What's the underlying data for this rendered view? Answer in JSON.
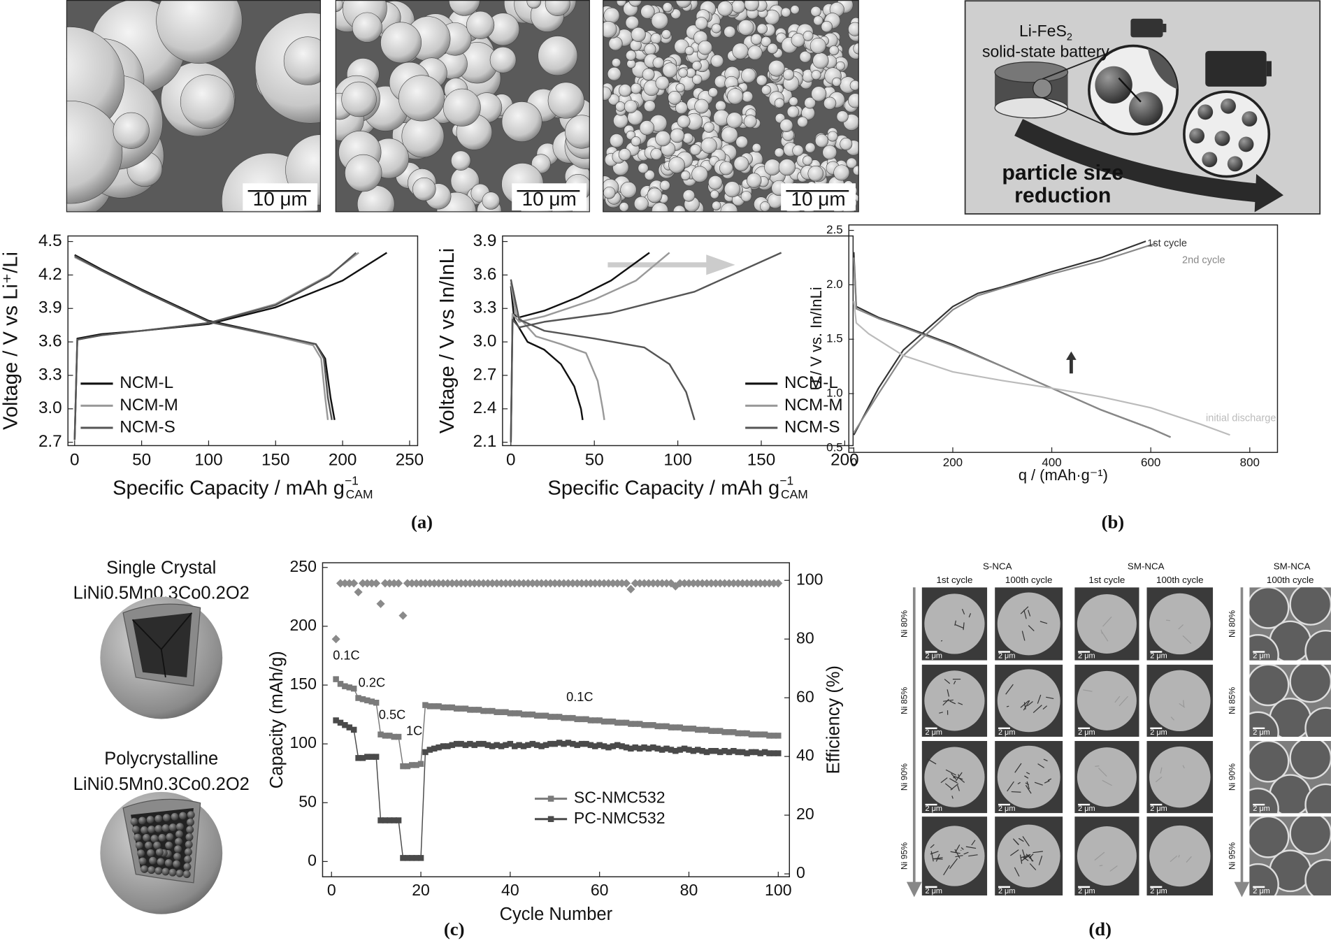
{
  "chart_data": [
    {
      "type": "line",
      "x_label": "Specific Capacity / mAh g",
      "x_label_sup": "−1",
      "x_label_sub": "CAM",
      "y_label": "Voltage / V vs Li⁺/Li",
      "xlim": [
        -5,
        256
      ],
      "ylim": [
        2.67,
        4.55
      ],
      "xticks": [
        0,
        50,
        100,
        150,
        200,
        250
      ],
      "yticks": [
        2.7,
        {
          "value": 3,
          "label": "3.0"
        },
        3.3,
        3.6,
        3.9,
        4.2,
        4.5
      ],
      "grid": false,
      "legend": "lower left",
      "series": [
        {
          "name": "NCM-L",
          "color": "#111111",
          "x": [
            0,
            2,
            20,
            50,
            100,
            150,
            200,
            233,
            0,
            0,
            20,
            50,
            100,
            150,
            180,
            187,
            191,
            194
          ],
          "values": [
            2.72,
            3.63,
            3.67,
            3.7,
            3.76,
            3.91,
            4.15,
            4.4,
            null,
            4.38,
            4.25,
            4.07,
            3.79,
            3.66,
            3.58,
            3.45,
            3.1,
            2.9
          ]
        },
        {
          "name": "NCM-M",
          "color": "#999999",
          "x": [
            0,
            2,
            20,
            50,
            100,
            150,
            190,
            212,
            0,
            0,
            20,
            50,
            100,
            150,
            178,
            184,
            187,
            189
          ],
          "values": [
            2.72,
            3.62,
            3.66,
            3.7,
            3.77,
            3.94,
            4.2,
            4.4,
            null,
            4.36,
            4.24,
            4.06,
            3.78,
            3.65,
            3.57,
            3.45,
            3.1,
            2.9
          ]
        },
        {
          "name": "NCM-S",
          "color": "#555555",
          "x": [
            0,
            2,
            20,
            50,
            100,
            150,
            190,
            210,
            0,
            0,
            20,
            50,
            100,
            150,
            180,
            186,
            189,
            192
          ],
          "values": [
            2.72,
            3.62,
            3.66,
            3.7,
            3.77,
            3.93,
            4.19,
            4.4,
            null,
            4.37,
            4.24,
            4.06,
            3.78,
            3.66,
            3.58,
            3.45,
            3.1,
            2.9
          ]
        }
      ]
    },
    {
      "type": "line",
      "x_label": "Specific Capacity / mAh g",
      "x_label_sup": "−1",
      "x_label_sub": "CAM",
      "y_label": "Voltage / V vs In/InLi",
      "xlim": [
        -5,
        205
      ],
      "ylim": [
        2.07,
        3.95
      ],
      "xticks": [
        0,
        50,
        100,
        150,
        200
      ],
      "yticks": [
        2.1,
        2.4,
        2.7,
        {
          "value": 3,
          "label": "3.0"
        },
        3.3,
        3.6,
        3.9
      ],
      "grid": false,
      "legend": "lower right",
      "series": [
        {
          "name": "NCM-L",
          "color": "#111111",
          "x": [
            0,
            1,
            5,
            20,
            40,
            60,
            83,
            0,
            0,
            2,
            10,
            20,
            30,
            38,
            42,
            43
          ],
          "values": [
            2.1,
            3.25,
            3.22,
            3.28,
            3.4,
            3.55,
            3.8,
            null,
            3.5,
            3.2,
            3.0,
            2.93,
            2.8,
            2.6,
            2.4,
            2.3
          ]
        },
        {
          "name": "NCM-M",
          "color": "#999999",
          "x": [
            0,
            1,
            5,
            20,
            50,
            75,
            95,
            0,
            0,
            3,
            15,
            30,
            45,
            52,
            55,
            56
          ],
          "values": [
            2.1,
            3.25,
            3.18,
            3.23,
            3.38,
            3.55,
            3.8,
            null,
            3.53,
            3.25,
            3.05,
            2.98,
            2.9,
            2.65,
            2.4,
            2.3
          ]
        },
        {
          "name": "NCM-S",
          "color": "#555555",
          "x": [
            0,
            1,
            5,
            20,
            60,
            110,
            162,
            0,
            0,
            5,
            20,
            50,
            80,
            95,
            105,
            110
          ],
          "values": [
            2.1,
            3.2,
            3.13,
            3.18,
            3.26,
            3.45,
            3.8,
            null,
            3.56,
            3.2,
            3.1,
            3.03,
            2.95,
            2.8,
            2.55,
            2.3
          ]
        }
      ]
    },
    {
      "type": "line",
      "x_label": "q / (mAh·g⁻¹)",
      "y_label": "U / V vs. In/InLi",
      "xlim": [
        -10,
        856
      ],
      "ylim": [
        0.46,
        2.55
      ],
      "xticks": [
        0,
        200,
        400,
        600,
        800
      ],
      "yticks": [
        0.5,
        {
          "value": 1,
          "label": "1.0"
        },
        1.5,
        {
          "value": 2,
          "label": "2.0"
        },
        2.5
      ],
      "grid": false,
      "legend": "inline",
      "series": [
        {
          "name": "1st cycle",
          "color": "#333333",
          "x": [
            0,
            5,
            50,
            100,
            200,
            300,
            400,
            500,
            600,
            640,
            0,
            0,
            50,
            100,
            200,
            250,
            300,
            400,
            500,
            590
          ],
          "values": [
            2.3,
            1.8,
            1.7,
            1.62,
            1.45,
            1.25,
            1.05,
            0.85,
            0.68,
            0.6,
            null,
            0.62,
            1.05,
            1.4,
            1.8,
            1.92,
            1.98,
            2.12,
            2.25,
            2.4
          ]
        },
        {
          "name": "2nd cycle",
          "color": "#888888",
          "x": [
            0,
            5,
            50,
            100,
            200,
            300,
            400,
            500,
            600,
            640,
            0,
            0,
            50,
            100,
            200,
            250,
            300,
            400,
            500,
            610
          ],
          "values": [
            2.25,
            1.78,
            1.69,
            1.61,
            1.44,
            1.25,
            1.05,
            0.85,
            0.68,
            0.6,
            null,
            0.64,
            1.0,
            1.35,
            1.77,
            1.9,
            1.97,
            2.1,
            2.22,
            2.38
          ]
        },
        {
          "name": "initial discharge",
          "color": "#bbbbbb",
          "x": [
            0,
            5,
            30,
            100,
            200,
            300,
            400,
            500,
            600,
            700,
            760
          ],
          "values": [
            1.85,
            1.65,
            1.55,
            1.35,
            1.2,
            1.12,
            1.05,
            0.97,
            0.87,
            0.72,
            0.62
          ]
        }
      ]
    },
    {
      "type": "line",
      "x_label": "Cycle Number",
      "y_label": "Capacity (mAh/g)",
      "y2_label": "Efficiency (%)",
      "xlim": [
        -2,
        102.5
      ],
      "ylim": [
        -13,
        254
      ],
      "y2lim": [
        -1,
        106
      ],
      "xticks": [
        0,
        20,
        40,
        60,
        80,
        100
      ],
      "yticks": [
        0,
        50,
        100,
        150,
        200,
        250
      ],
      "y2ticks": [
        0,
        20,
        40,
        60,
        80,
        100
      ],
      "grid": false,
      "legend": "lower center",
      "annotations": [
        "0.1C",
        "0.2C",
        "0.5C",
        "1C",
        "0.1C"
      ],
      "x": [
        1,
        2,
        3,
        4,
        5,
        6,
        7,
        8,
        9,
        10,
        11,
        12,
        13,
        14,
        15,
        16,
        17,
        18,
        19,
        20,
        21,
        22,
        23,
        24,
        25,
        26,
        27,
        28,
        29,
        30,
        31,
        32,
        33,
        34,
        35,
        36,
        37,
        38,
        39,
        40,
        41,
        42,
        43,
        44,
        45,
        46,
        47,
        48,
        49,
        50,
        51,
        52,
        53,
        54,
        55,
        56,
        57,
        58,
        59,
        60,
        61,
        62,
        63,
        64,
        65,
        66,
        67,
        68,
        69,
        70,
        71,
        72,
        73,
        74,
        75,
        76,
        77,
        78,
        79,
        80,
        81,
        82,
        83,
        84,
        85,
        86,
        87,
        88,
        89,
        90,
        91,
        92,
        93,
        94,
        95,
        96,
        97,
        98,
        99,
        100
      ],
      "series": [
        {
          "name": "SC-NMC532",
          "color": "#7a7a7a",
          "marker": "square",
          "values": [
            155,
            151,
            149,
            148,
            147,
            139,
            138,
            137,
            136,
            135,
            108,
            107,
            107,
            106,
            106,
            81,
            81,
            82,
            82,
            83,
            133,
            132,
            132,
            132,
            131,
            131,
            131,
            130,
            130,
            130,
            129,
            129,
            129,
            128,
            128,
            128,
            127,
            127,
            127,
            126,
            126,
            126,
            125,
            125,
            125,
            124,
            124,
            124,
            123,
            123,
            123,
            122,
            122,
            122,
            121,
            121,
            121,
            120,
            120,
            120,
            119,
            119,
            119,
            118,
            118,
            118,
            117,
            117,
            117,
            116,
            116,
            116,
            115,
            115,
            115,
            114,
            114,
            114,
            113,
            113,
            113,
            112,
            112,
            112,
            111,
            111,
            111,
            110,
            110,
            110,
            109,
            109,
            109,
            108,
            108,
            108,
            108,
            107,
            107,
            107
          ]
        },
        {
          "name": "PC-NMC532",
          "color": "#4a4a4a",
          "marker": "square",
          "values": [
            120,
            118,
            116,
            114,
            112,
            88,
            88,
            89,
            89,
            89,
            35,
            35,
            35,
            35,
            35,
            3,
            3,
            3,
            3,
            3,
            93,
            95,
            96,
            97,
            98,
            98,
            99,
            100,
            100,
            99,
            100,
            99,
            100,
            100,
            99,
            98,
            99,
            98,
            99,
            100,
            98,
            99,
            98,
            99,
            100,
            99,
            98,
            99,
            100,
            100,
            101,
            100,
            101,
            100,
            99,
            100,
            100,
            99,
            98,
            99,
            98,
            97,
            98,
            99,
            98,
            97,
            96,
            97,
            96,
            97,
            96,
            97,
            96,
            95,
            96,
            95,
            94,
            95,
            96,
            95,
            94,
            95,
            94,
            93,
            94,
            94,
            93,
            94,
            93,
            94,
            93,
            93,
            92,
            93,
            93,
            92,
            93,
            92,
            92,
            92
          ]
        },
        {
          "color": "#8a8a8a",
          "marker": "diamond",
          "axis": "y2",
          "values": [
            80,
            99,
            99,
            99,
            99,
            96,
            99,
            99,
            99,
            99,
            92,
            99,
            99,
            99,
            99,
            88,
            99,
            99,
            99,
            99,
            99,
            99,
            99,
            99,
            99,
            99,
            99,
            99,
            99,
            99,
            99,
            99,
            99,
            99,
            99,
            99,
            99,
            99,
            99,
            99,
            99,
            99,
            99,
            99,
            99,
            99,
            99,
            99,
            99,
            99,
            99,
            99,
            99,
            99,
            99,
            99,
            99,
            99,
            99,
            99,
            99,
            99,
            99,
            99,
            99,
            99,
            97,
            99,
            99,
            99,
            99,
            99,
            99,
            99,
            99,
            99,
            98,
            99,
            99,
            99,
            99,
            99,
            99,
            99,
            99,
            99,
            99,
            99,
            99,
            99,
            99,
            99,
            99,
            99,
            99,
            99,
            99,
            99,
            99,
            99
          ]
        }
      ]
    }
  ],
  "figure": {
    "panel_a": {
      "scale_bars": [
        "10 μm",
        "10 μm",
        "10 μm"
      ],
      "label": "(a)"
    },
    "panel_b": {
      "battery": "Li-FeS",
      "battery_sub": "2",
      "battery_line2": "solid-state battery",
      "arrow_text": [
        "particle size",
        "reduction"
      ],
      "label": "(b)"
    },
    "panel_c": {
      "texts": [
        "Single Crystal",
        "LiNi0.5Mn0.3Co0.2O2",
        "Polycrystalline",
        "LiNi0.5Mn0.3Co0.2O2"
      ],
      "label": "(c)"
    },
    "panel_d": {
      "groups": [
        {
          "title": "S-NCA",
          "columns": [
            "1st cycle",
            "100th cycle"
          ]
        },
        {
          "title": "SM-NCA",
          "columns": [
            "1st cycle",
            "100th cycle"
          ]
        },
        {
          "title": "SM-NCA",
          "columns": [
            "100th cycle"
          ]
        }
      ],
      "rows": [
        "Ni 80%",
        "Ni 85%",
        "Ni 90%",
        "Ni 95%"
      ],
      "scale_bar": "2 μm",
      "label": "(d)"
    }
  }
}
